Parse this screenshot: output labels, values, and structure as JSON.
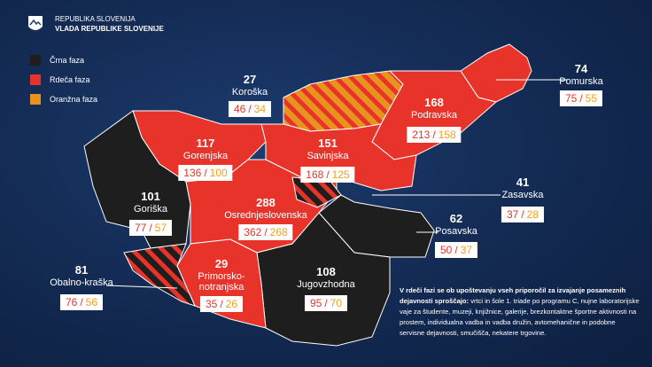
{
  "header": {
    "line1": "REPUBLIKA SLOVENIJA",
    "line2": "VLADA REPUBLIKE SLOVENIJE"
  },
  "legend": [
    {
      "label": "Črna faza",
      "color": "#1e1e1e"
    },
    {
      "label": "Rdeča faza",
      "color": "#e8332a"
    },
    {
      "label": "Oranžna faza",
      "color": "#e8931e"
    }
  ],
  "separator": "/",
  "regions": [
    {
      "name": "Koroška",
      "number": 27,
      "a": 46,
      "b": 34
    },
    {
      "name": "Pomurska",
      "number": 74,
      "a": 75,
      "b": 55
    },
    {
      "name": "Podravska",
      "number": 168,
      "a": 213,
      "b": 158
    },
    {
      "name": "Gorenjska",
      "number": 117,
      "a": 136,
      "b": 100
    },
    {
      "name": "Savinjska",
      "number": 151,
      "a": 168,
      "b": 125
    },
    {
      "name": "Zasavska",
      "number": 41,
      "a": 37,
      "b": 28
    },
    {
      "name": "Goriška",
      "number": 101,
      "a": 77,
      "b": 57
    },
    {
      "name": "Osrednjeslovenska",
      "number": 288,
      "a": 362,
      "b": 268
    },
    {
      "name": "Posavska",
      "number": 62,
      "a": 50,
      "b": 37
    },
    {
      "name": "Obalno-kraška",
      "number": 81,
      "a": 76,
      "b": 56
    },
    {
      "name": "Primorsko-notranjska",
      "number": 29,
      "a": 35,
      "b": 26
    },
    {
      "name": "Jugovzhodna",
      "number": 108,
      "a": 95,
      "b": 70
    }
  ],
  "note": {
    "bold": "V rdeči fazi se ob upoštevanju vseh priporočil za izvajanje posameznih dejavnosti sproščajo:",
    "text": "vrtci in šole 1. triade po programu C, nujne laboratorijske vaje za študente, muzeji, knjižnice, galerije, brezkontaktne športne aktivnosti na prostem, individualna vadba in vadba družin, avtomehanične in podobne servisne dejavnosti, smučišča, nekatere trgovine."
  }
}
